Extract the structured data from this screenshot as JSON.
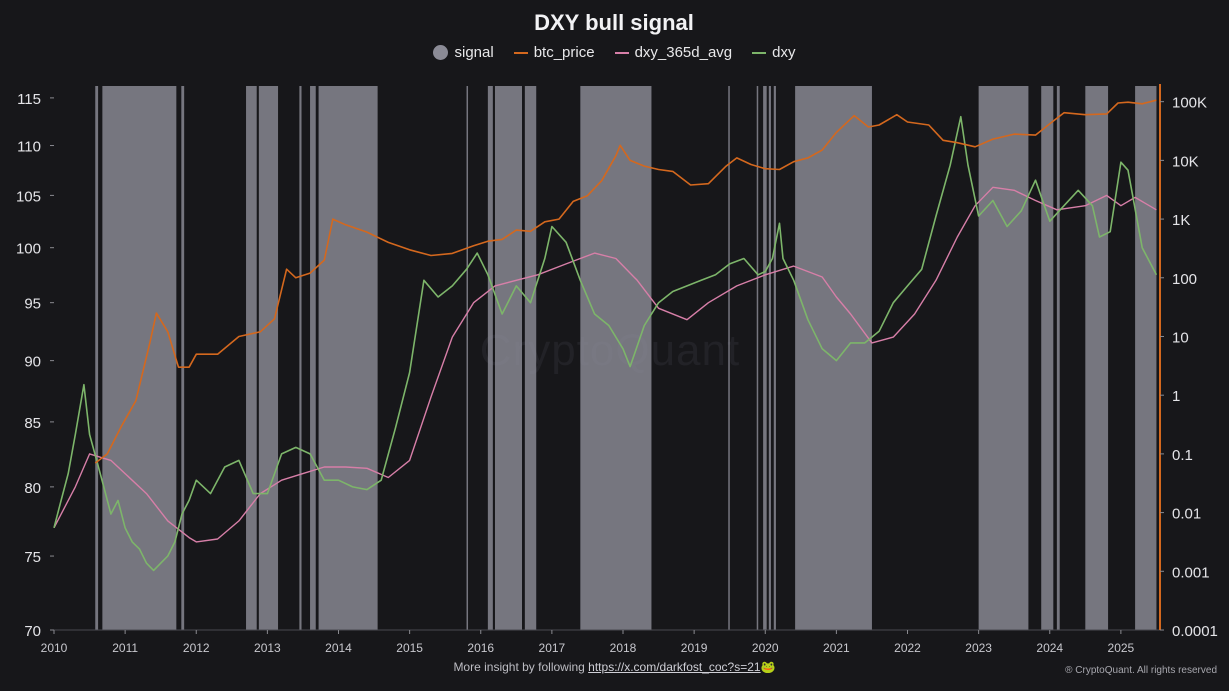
{
  "chart_data": {
    "type": "line",
    "title": "DXY bull signal",
    "legend": [
      {
        "name": "signal",
        "color": "#8b8b96",
        "marker": "dot"
      },
      {
        "name": "btc_price",
        "color": "#d4681e",
        "marker": "line"
      },
      {
        "name": "dxy_365d_avg",
        "color": "#d77fa8",
        "marker": "line"
      },
      {
        "name": "dxy",
        "color": "#7db56a",
        "marker": "line"
      }
    ],
    "x_ticks": [
      "2010",
      "2011",
      "2012",
      "2013",
      "2014",
      "2015",
      "2016",
      "2017",
      "2018",
      "2019",
      "2020",
      "2021",
      "2022",
      "2023",
      "2024",
      "2025"
    ],
    "x_range": [
      2010.0,
      2025.55
    ],
    "y_left": {
      "ticks": [
        70,
        75,
        80,
        85,
        90,
        95,
        100,
        105,
        110,
        115
      ],
      "range": [
        70,
        116.5
      ],
      "scale": "log"
    },
    "y_right": {
      "ticks": [
        "0.0001",
        "0.001",
        "0.01",
        "0.1",
        "1",
        "10",
        "100",
        "1K",
        "10K",
        "100K"
      ],
      "tick_values": [
        0.0001,
        0.001,
        0.01,
        0.1,
        1,
        10,
        100,
        1000,
        10000,
        100000
      ],
      "range": [
        0.0001,
        200000
      ],
      "scale": "log"
    },
    "signal_periods": [
      [
        2010.58,
        2010.62
      ],
      [
        2010.68,
        2011.72
      ],
      [
        2011.79,
        2011.83
      ],
      [
        2012.7,
        2012.85
      ],
      [
        2012.88,
        2013.15
      ],
      [
        2013.45,
        2013.48
      ],
      [
        2013.6,
        2013.68
      ],
      [
        2013.72,
        2014.55
      ],
      [
        2015.8,
        2015.82
      ],
      [
        2016.1,
        2016.17
      ],
      [
        2016.2,
        2016.58
      ],
      [
        2016.62,
        2016.78
      ],
      [
        2017.4,
        2018.4
      ],
      [
        2019.48,
        2019.5
      ],
      [
        2019.88,
        2019.9
      ],
      [
        2019.97,
        2020.02
      ],
      [
        2020.05,
        2020.08
      ],
      [
        2020.12,
        2020.15
      ],
      [
        2020.42,
        2021.5
      ],
      [
        2023.0,
        2023.7
      ],
      [
        2023.88,
        2024.05
      ],
      [
        2024.1,
        2024.14
      ],
      [
        2024.5,
        2024.82
      ],
      [
        2025.2,
        2025.5
      ]
    ],
    "series": [
      {
        "name": "btc_price",
        "axis": "right",
        "x": [
          2010.58,
          2010.75,
          2010.95,
          2011.15,
          2011.35,
          2011.44,
          2011.6,
          2011.75,
          2011.9,
          2012.0,
          2012.3,
          2012.6,
          2012.9,
          2013.1,
          2013.27,
          2013.4,
          2013.6,
          2013.8,
          2013.92,
          2014.1,
          2014.4,
          2014.7,
          2015.0,
          2015.3,
          2015.6,
          2015.9,
          2016.1,
          2016.3,
          2016.5,
          2016.7,
          2016.9,
          2017.1,
          2017.3,
          2017.5,
          2017.7,
          2017.9,
          2017.96,
          2018.1,
          2018.3,
          2018.5,
          2018.7,
          2018.95,
          2019.2,
          2019.45,
          2019.6,
          2019.8,
          2020.0,
          2020.2,
          2020.4,
          2020.6,
          2020.8,
          2021.0,
          2021.25,
          2021.45,
          2021.6,
          2021.85,
          2022.0,
          2022.3,
          2022.5,
          2022.7,
          2022.95,
          2023.2,
          2023.5,
          2023.8,
          2024.0,
          2024.2,
          2024.5,
          2024.8,
          2024.96,
          2025.1,
          2025.3,
          2025.5
        ],
        "values": [
          0.07,
          0.1,
          0.3,
          0.8,
          8,
          25,
          12,
          3,
          3,
          5,
          5,
          10,
          12,
          20,
          140,
          100,
          120,
          200,
          1000,
          800,
          600,
          400,
          300,
          240,
          260,
          350,
          420,
          450,
          650,
          620,
          900,
          1000,
          2000,
          2500,
          4500,
          12000,
          18000,
          10000,
          8000,
          7000,
          6500,
          3800,
          4000,
          8000,
          11000,
          8500,
          7200,
          7000,
          9500,
          11000,
          15000,
          30000,
          58000,
          37000,
          40000,
          60000,
          45000,
          40000,
          22000,
          20000,
          17000,
          23000,
          28000,
          27000,
          42000,
          65000,
          60000,
          62000,
          95000,
          98000,
          92000,
          106000
        ]
      },
      {
        "name": "dxy_365d_avg",
        "axis": "left",
        "x": [
          2010.0,
          2010.3,
          2010.5,
          2010.8,
          2011.0,
          2011.3,
          2011.6,
          2011.9,
          2012.0,
          2012.3,
          2012.6,
          2012.9,
          2013.2,
          2013.5,
          2013.8,
          2014.1,
          2014.4,
          2014.7,
          2015.0,
          2015.3,
          2015.6,
          2015.9,
          2016.2,
          2016.5,
          2016.8,
          2017.2,
          2017.6,
          2017.9,
          2018.2,
          2018.5,
          2018.9,
          2019.2,
          2019.6,
          2020.0,
          2020.4,
          2020.8,
          2021.0,
          2021.2,
          2021.5,
          2021.8,
          2022.1,
          2022.4,
          2022.7,
          2022.95,
          2023.2,
          2023.5,
          2023.8,
          2024.1,
          2024.5,
          2024.8,
          2025.0,
          2025.2,
          2025.5
        ],
        "values": [
          77,
          80,
          82.5,
          82,
          81,
          79.5,
          77.5,
          76.3,
          76,
          76.2,
          77.5,
          79.5,
          80.5,
          81,
          81.5,
          81.5,
          81.4,
          80.7,
          82,
          87,
          92,
          95,
          96.5,
          97,
          97.5,
          98.5,
          99.5,
          99,
          97,
          94.5,
          93.5,
          95,
          96.5,
          97.5,
          98.3,
          97.3,
          95.5,
          94,
          91.5,
          92,
          94,
          97,
          101,
          104,
          105.8,
          105.5,
          104.5,
          103.6,
          104,
          105,
          104,
          104.8,
          103.6
        ]
      },
      {
        "name": "dxy",
        "axis": "left",
        "x": [
          2010.0,
          2010.1,
          2010.2,
          2010.3,
          2010.42,
          2010.5,
          2010.6,
          2010.7,
          2010.8,
          2010.9,
          2011.0,
          2011.1,
          2011.2,
          2011.3,
          2011.4,
          2011.5,
          2011.6,
          2011.7,
          2011.8,
          2011.9,
          2012.0,
          2012.2,
          2012.4,
          2012.6,
          2012.8,
          2013.0,
          2013.2,
          2013.4,
          2013.6,
          2013.8,
          2014.0,
          2014.2,
          2014.4,
          2014.6,
          2014.8,
          2015.0,
          2015.2,
          2015.4,
          2015.6,
          2015.8,
          2015.95,
          2016.1,
          2016.3,
          2016.5,
          2016.7,
          2016.9,
          2017.0,
          2017.2,
          2017.4,
          2017.6,
          2017.8,
          2018.0,
          2018.1,
          2018.3,
          2018.5,
          2018.7,
          2018.9,
          2019.1,
          2019.3,
          2019.5,
          2019.7,
          2019.9,
          2020.0,
          2020.1,
          2020.2,
          2020.25,
          2020.4,
          2020.6,
          2020.8,
          2021.0,
          2021.2,
          2021.4,
          2021.6,
          2021.8,
          2022.0,
          2022.2,
          2022.4,
          2022.6,
          2022.75,
          2022.85,
          2023.0,
          2023.2,
          2023.4,
          2023.6,
          2023.8,
          2024.0,
          2024.2,
          2024.4,
          2024.6,
          2024.7,
          2024.85,
          2025.0,
          2025.1,
          2025.3,
          2025.5
        ],
        "values": [
          77,
          79,
          81,
          84,
          88,
          84,
          82,
          80,
          78,
          79,
          77,
          76,
          75.5,
          74.5,
          74,
          74.5,
          75,
          76,
          78,
          79,
          80.5,
          79.5,
          81.5,
          82,
          79.5,
          79.5,
          82.5,
          83,
          82.5,
          80.5,
          80.5,
          80,
          79.8,
          80.5,
          84.5,
          89,
          97,
          95.5,
          96.5,
          98,
          99.5,
          97.5,
          94,
          96.5,
          95,
          99,
          102,
          100.5,
          97,
          94,
          93,
          91,
          89.5,
          93,
          95,
          96,
          96.5,
          97,
          97.5,
          98.5,
          99,
          97.5,
          97.8,
          99,
          102.3,
          99,
          97,
          93.5,
          91,
          90,
          91.5,
          91.5,
          92.5,
          95,
          96.5,
          98,
          103,
          108,
          113,
          108,
          103,
          104.5,
          102,
          103.5,
          106.5,
          102.5,
          104,
          105.5,
          104,
          101,
          101.5,
          108.3,
          107.5,
          100,
          97.5
        ]
      }
    ]
  },
  "footer": {
    "prefix": "More insight by following ",
    "link": "https://x.com/darkfost_coc?s=21",
    "emoji": "🐸"
  },
  "copyright": "® CryptoQuant. All rights reserved",
  "watermark": "CryptoQuant"
}
